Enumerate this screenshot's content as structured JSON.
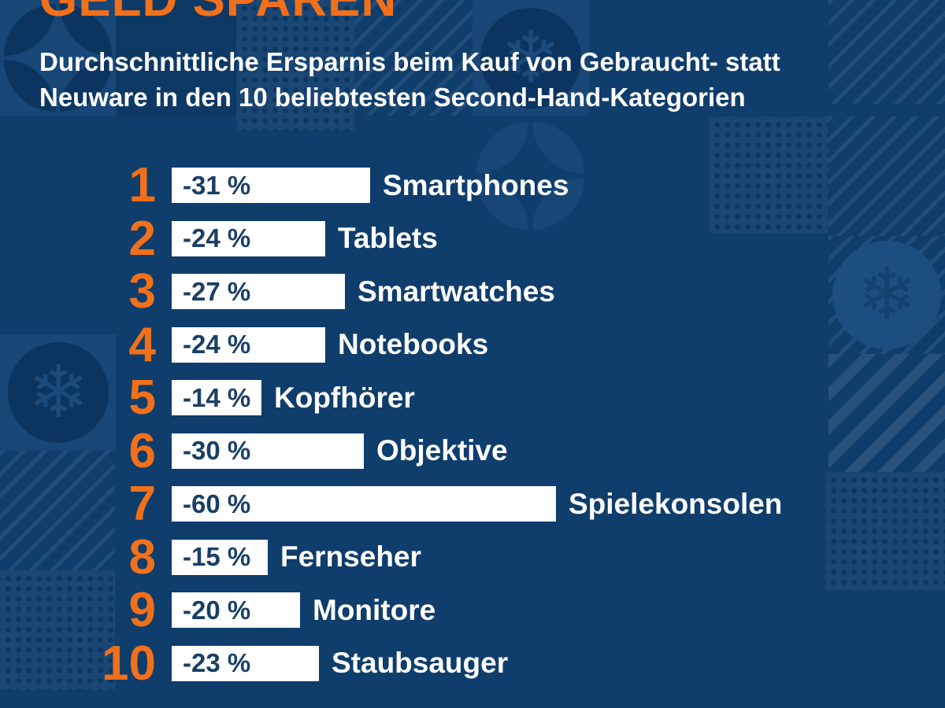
{
  "palette": {
    "background": "#0f3d6c",
    "tile_light": "#174677",
    "tile_dark": "#0b3560",
    "accent_orange": "#f2701a",
    "bar_fill": "#ffffff",
    "bar_value_text": "#1a3f66",
    "label_text": "#ffffff"
  },
  "header": {
    "title": "GELD SPAREN",
    "subtitle_line1": "Durchschnittliche Ersparnis beim Kauf von Gebraucht- statt",
    "subtitle_line2": "Neuware in den 10 beliebtesten Second-Hand-Kategorien"
  },
  "icons": {
    "snowflake": "❄"
  },
  "chart_data": {
    "type": "bar",
    "orientation": "horizontal",
    "title": "GELD SPAREN",
    "subtitle": "Durchschnittliche Ersparnis beim Kauf von Gebraucht- statt Neuware in den 10 beliebtesten Second-Hand-Kategorien",
    "value_unit": "%",
    "categories": [
      "Smartphones",
      "Tablets",
      "Smartwatches",
      "Notebooks",
      "Kopfhörer",
      "Objektive",
      "Spielekonsolen",
      "Fernseher",
      "Monitore",
      "Staubsauger"
    ],
    "values": [
      -31,
      -24,
      -27,
      -24,
      -14,
      -30,
      -60,
      -15,
      -20,
      -23
    ],
    "bar_value_labels": [
      "-31 %",
      "-24 %",
      "-27 %",
      "-24 %",
      "-14 %",
      "-30 %",
      "-60 %",
      "-15 %",
      "-20 %",
      "-23 %"
    ],
    "ranks": [
      1,
      2,
      3,
      4,
      5,
      6,
      7,
      8,
      9,
      10
    ],
    "xlim": [
      0,
      60
    ],
    "grid": false,
    "legend": false,
    "bar_color": "#ffffff",
    "value_label_color": "#1a3f66",
    "rank_number_color": "#f2701a",
    "category_label_color": "#ffffff",
    "pixels_per_percent": 8.13
  },
  "rows": [
    {
      "rank": "1",
      "value_label": "-31 %",
      "category": "Smartphones",
      "percent": 31
    },
    {
      "rank": "2",
      "value_label": "-24 %",
      "category": "Tablets",
      "percent": 24
    },
    {
      "rank": "3",
      "value_label": "-27 %",
      "category": "Smartwatches",
      "percent": 27
    },
    {
      "rank": "4",
      "value_label": "-24 %",
      "category": "Notebooks",
      "percent": 24
    },
    {
      "rank": "5",
      "value_label": "-14 %",
      "category": "Kopfhörer",
      "percent": 14
    },
    {
      "rank": "6",
      "value_label": "-30 %",
      "category": "Objektive",
      "percent": 30
    },
    {
      "rank": "7",
      "value_label": "-60 %",
      "category": "Spielekonsolen",
      "percent": 60
    },
    {
      "rank": "8",
      "value_label": "-15 %",
      "category": "Fernseher",
      "percent": 15
    },
    {
      "rank": "9",
      "value_label": "-20 %",
      "category": "Monitore",
      "percent": 20
    },
    {
      "rank": "10",
      "value_label": "-23 %",
      "category": "Staubsauger",
      "percent": 23
    }
  ]
}
